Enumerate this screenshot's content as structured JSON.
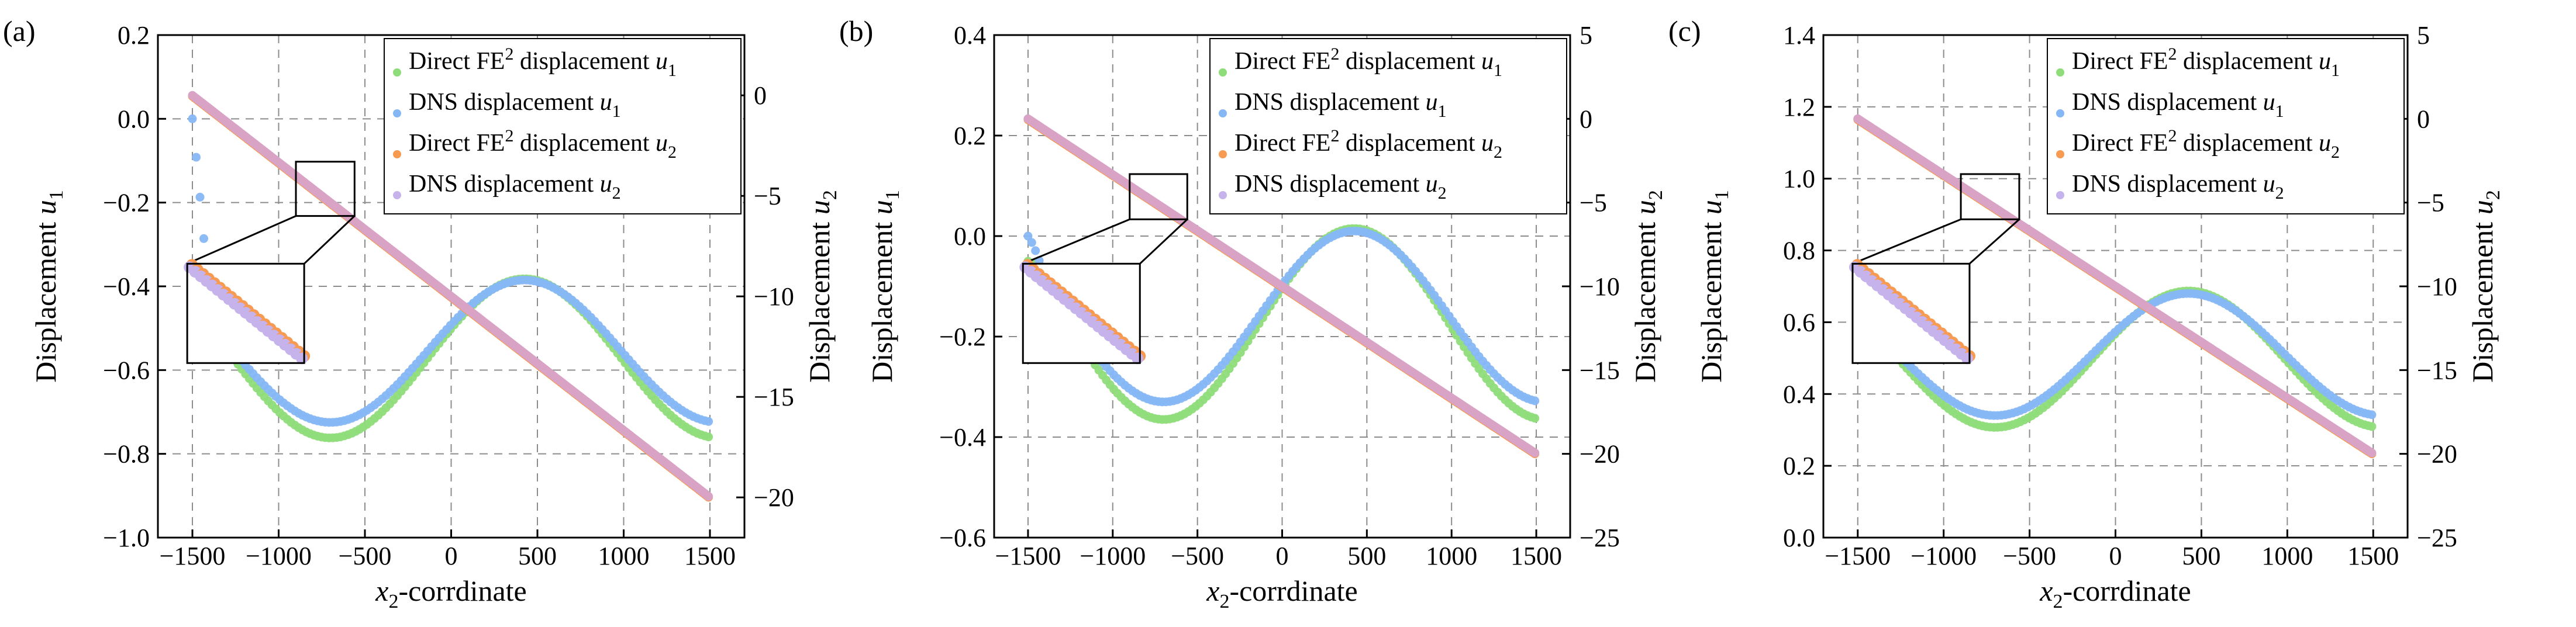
{
  "colors": {
    "fe2_u1": "#8fdc7a",
    "dns_u1": "#86b7f5",
    "fe2_u2": "#f79a52",
    "dns_u2": "#c6b3ec",
    "line_blend": "#d9a3c6"
  },
  "chart_data": [
    {
      "type": "scatter",
      "panel_label": "(a)",
      "xlabel_var": "x",
      "xlabel_sub": "2",
      "xlabel_rest": "-corrdinate",
      "ylabel_left": "Displacement",
      "ylabel_left_var": "u",
      "ylabel_left_sub": "1",
      "ylabel_right": "Displacement",
      "ylabel_right_var": "u",
      "ylabel_right_sub": "2",
      "xlim": [
        -1700,
        1700
      ],
      "ylim_left": [
        -1.0,
        0.2
      ],
      "ylim_right": [
        -22,
        3
      ],
      "x_ticks": [
        -1500,
        -1000,
        -500,
        0,
        500,
        1000,
        1500
      ],
      "x_tick_labels": [
        "−1500",
        "−1000",
        "−500",
        "0",
        "500",
        "1000",
        "1500"
      ],
      "y_left_ticks": [
        -1.0,
        -0.8,
        -0.6,
        -0.4,
        -0.2,
        0.0,
        0.2
      ],
      "y_left_tick_labels": [
        "−1.0",
        "−0.8",
        "−0.6",
        "−0.4",
        "−0.2",
        "0.0",
        "0.2"
      ],
      "y_right_ticks": [
        0,
        -5,
        -10,
        -15,
        -20
      ],
      "y_right_tick_labels": [
        "0",
        "−5",
        "−10",
        "−15",
        "−20"
      ],
      "legend_position": "top-right",
      "legend": [
        {
          "prefix": "Direct FE",
          "sup": "2",
          "mid": " displacement ",
          "var": "u",
          "sub": "1",
          "series": "fe2_u1"
        },
        {
          "prefix": "DNS",
          "sup": "",
          "mid": "  displacement ",
          "var": "u",
          "sub": "1",
          "series": "dns_u1"
        },
        {
          "prefix": "Direct FE",
          "sup": "2",
          "mid": " displacement ",
          "var": "u",
          "sub": "2",
          "series": "fe2_u2"
        },
        {
          "prefix": "DNS",
          "sup": "",
          "mid": "  displacement ",
          "var": "u",
          "sub": "2",
          "series": "dns_u2"
        }
      ],
      "series": [
        {
          "name": "Direct FE2 displacement u1",
          "key": "fe2_u1",
          "axis": "left",
          "model": {
            "form": "wave",
            "offset": -0.572,
            "amplitude": -0.19,
            "period": 2250,
            "x0": -1500,
            "start": -0.38
          }
        },
        {
          "name": "DNS displacement u1",
          "key": "dns_u1",
          "axis": "left",
          "model": {
            "form": "wave",
            "offset": -0.555,
            "amplitude": -0.17,
            "period": 2250,
            "x0": -1500,
            "start": 0.0
          }
        },
        {
          "name": "Direct FE2 displacement u2",
          "key": "fe2_u2",
          "axis": "right",
          "model": {
            "form": "linear",
            "at_start": 0,
            "at_end": -20
          }
        },
        {
          "name": "DNS displacement u2",
          "key": "dns_u2",
          "axis": "right",
          "model": {
            "form": "linear",
            "at_start": 0,
            "at_end": -20
          }
        }
      ],
      "zoom_region": {
        "x": [
          -900,
          -560
        ],
        "y_right": [
          -3.3,
          -6.0
        ]
      }
    },
    {
      "type": "scatter",
      "panel_label": "(b)",
      "xlabel_var": "x",
      "xlabel_sub": "2",
      "xlabel_rest": "-corrdinate",
      "ylabel_left": "Displacement",
      "ylabel_left_var": "u",
      "ylabel_left_sub": "1",
      "ylabel_right": "Displacement",
      "ylabel_right_var": "u",
      "ylabel_right_sub": "2",
      "xlim": [
        -1700,
        1700
      ],
      "ylim_left": [
        -0.6,
        0.4
      ],
      "ylim_right": [
        -25,
        5
      ],
      "x_ticks": [
        -1500,
        -1000,
        -500,
        0,
        500,
        1000,
        1500
      ],
      "x_tick_labels": [
        "−1500",
        "−1000",
        "−500",
        "0",
        "500",
        "1000",
        "1500"
      ],
      "y_left_ticks": [
        -0.6,
        -0.4,
        -0.2,
        0.0,
        0.2,
        0.4
      ],
      "y_left_tick_labels": [
        "−0.6",
        "−0.4",
        "−0.2",
        "0.0",
        "0.2",
        "0.4"
      ],
      "y_right_ticks": [
        5,
        0,
        -5,
        -10,
        -15,
        -20,
        -25
      ],
      "y_right_tick_labels": [
        "5",
        "0",
        "−5",
        "−10",
        "−15",
        "−20",
        "−25"
      ],
      "legend_position": "top-right",
      "legend": [
        {
          "prefix": "Direct FE",
          "sup": "2",
          "mid": "  displacement ",
          "var": "u",
          "sub": "1",
          "series": "fe2_u1"
        },
        {
          "prefix": "DNS",
          "sup": "",
          "mid": "  displacement ",
          "var": "u",
          "sub": "1",
          "series": "dns_u1"
        },
        {
          "prefix": "Direct FE",
          "sup": "2",
          "mid": "  displacement ",
          "var": "u",
          "sub": "2",
          "series": "fe2_u2"
        },
        {
          "prefix": "DNS",
          "sup": "",
          "mid": "  displacement ",
          "var": "u",
          "sub": "2",
          "series": "dns_u2"
        }
      ],
      "series": [
        {
          "name": "Direct FE2 displacement u1",
          "key": "fe2_u1",
          "axis": "left",
          "model": {
            "form": "wave",
            "offset": -0.175,
            "amplitude": -0.19,
            "period": 2250,
            "x0": -1500,
            "start": -0.05
          }
        },
        {
          "name": "DNS displacement u1",
          "key": "dns_u1",
          "axis": "left",
          "model": {
            "form": "wave",
            "offset": -0.16,
            "amplitude": -0.17,
            "period": 2250,
            "x0": -1500,
            "start": 0.0
          }
        },
        {
          "name": "Direct FE2 displacement u2",
          "key": "fe2_u2",
          "axis": "right",
          "model": {
            "form": "linear",
            "at_start": 0,
            "at_end": -20
          }
        },
        {
          "name": "DNS displacement u2",
          "key": "dns_u2",
          "axis": "right",
          "model": {
            "form": "linear",
            "at_start": 0,
            "at_end": -20
          }
        }
      ],
      "zoom_region": {
        "x": [
          -900,
          -560
        ],
        "y_right": [
          -3.3,
          -6.0
        ]
      }
    },
    {
      "type": "scatter",
      "panel_label": "(c)",
      "xlabel_var": "x",
      "xlabel_sub": "2",
      "xlabel_rest": "-corrdinate",
      "ylabel_left": "Displacement",
      "ylabel_left_var": "u",
      "ylabel_left_sub": "1",
      "ylabel_right": "Displacement",
      "ylabel_right_var": "u",
      "ylabel_right_sub": "2",
      "xlim": [
        -1700,
        1700
      ],
      "ylim_left": [
        0.0,
        1.4
      ],
      "ylim_right": [
        -25,
        5
      ],
      "x_ticks": [
        -1500,
        -1000,
        -500,
        0,
        500,
        1000,
        1500
      ],
      "x_tick_labels": [
        "−1500",
        "−1000",
        "−500",
        "0",
        "500",
        "1000",
        "1500"
      ],
      "y_left_ticks": [
        0.0,
        0.2,
        0.4,
        0.6,
        0.8,
        1.0,
        1.2,
        1.4
      ],
      "y_left_tick_labels": [
        "0.0",
        "0.2",
        "0.4",
        "0.6",
        "0.8",
        "1.0",
        "1.2",
        "1.4"
      ],
      "y_right_ticks": [
        5,
        0,
        -5,
        -10,
        -15,
        -20,
        -25
      ],
      "y_right_tick_labels": [
        "5",
        "0",
        "−5",
        "−10",
        "−15",
        "−20",
        "−25"
      ],
      "legend_position": "top-right",
      "legend": [
        {
          "prefix": "Direct FE",
          "sup": "2",
          "mid": " displacement ",
          "var": "u",
          "sub": "1",
          "series": "fe2_u1"
        },
        {
          "prefix": "DNS",
          "sup": "",
          "mid": "  displacement ",
          "var": "u",
          "sub": "1",
          "series": "dns_u1"
        },
        {
          "prefix": "Direct FE",
          "sup": "2",
          "mid": " displacement ",
          "var": "u",
          "sub": "2",
          "series": "fe2_u2"
        },
        {
          "prefix": "DNS",
          "sup": "",
          "mid": "  displacement ",
          "var": "u",
          "sub": "2",
          "series": "dns_u2"
        }
      ],
      "series": [
        {
          "name": "Direct FE2 displacement u1",
          "key": "fe2_u1",
          "axis": "left",
          "model": {
            "form": "wave",
            "offset": 0.497,
            "amplitude": -0.19,
            "period": 2250,
            "x0": -1440,
            "start": 0.6
          }
        },
        {
          "name": "DNS displacement u1",
          "key": "dns_u1",
          "axis": "left",
          "model": {
            "form": "wave",
            "offset": 0.51,
            "amplitude": -0.17,
            "period": 2250,
            "x0": -1440,
            "start": 0.53
          }
        },
        {
          "name": "Direct FE2 displacement u2",
          "key": "fe2_u2",
          "axis": "right",
          "model": {
            "form": "linear",
            "at_start": 0,
            "at_end": -20
          }
        },
        {
          "name": "DNS displacement u2",
          "key": "dns_u2",
          "axis": "right",
          "model": {
            "form": "linear",
            "at_start": 0,
            "at_end": -20
          }
        }
      ],
      "zoom_region": {
        "x": [
          -900,
          -560
        ],
        "y_right": [
          -3.3,
          -6.0
        ]
      }
    }
  ]
}
